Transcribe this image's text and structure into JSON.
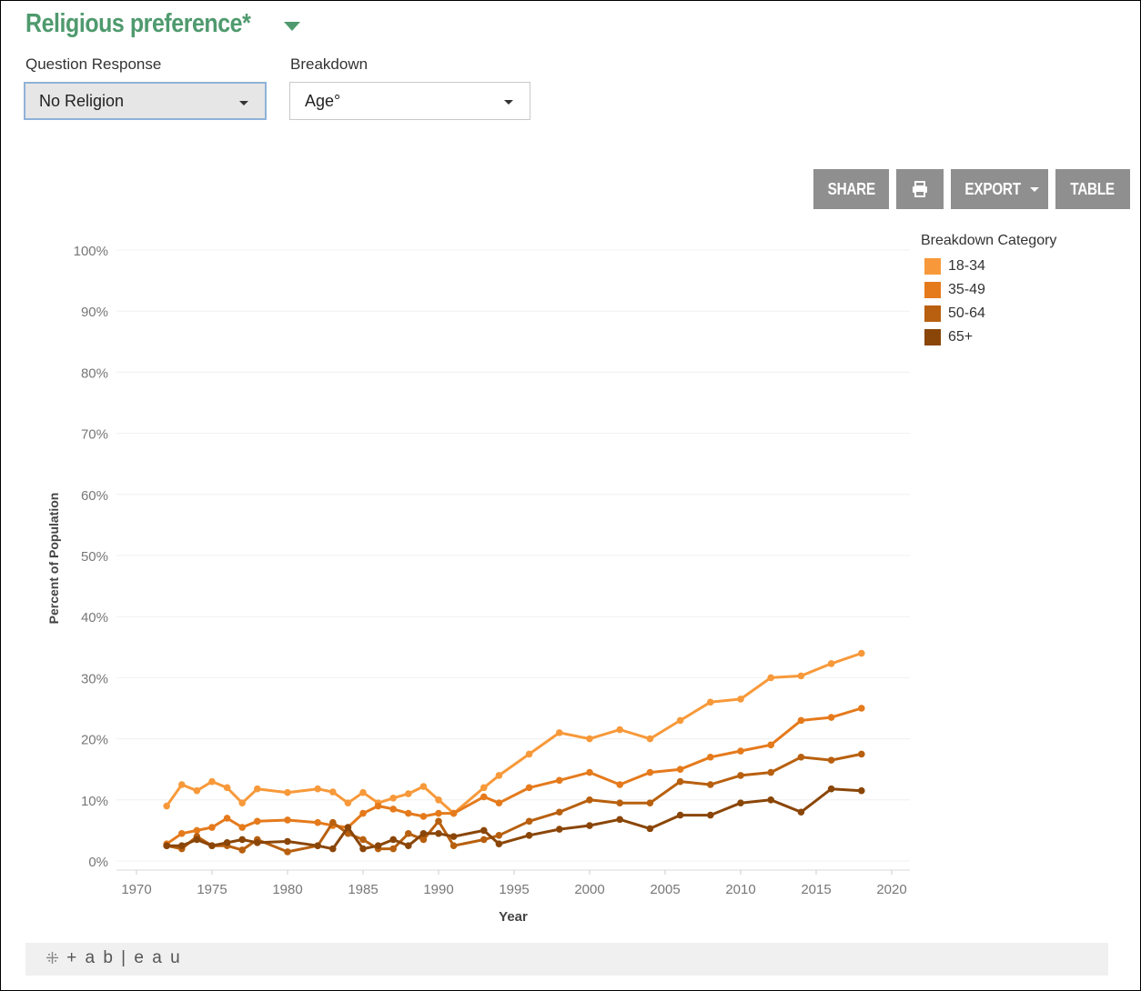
{
  "header": {
    "title": "Religious preference*"
  },
  "controls": {
    "question_label": "Question Response",
    "question_value": "No Religion",
    "breakdown_label": "Breakdown",
    "breakdown_value": "Age°"
  },
  "toolbar": {
    "share": "SHARE",
    "export": "EXPORT",
    "table": "TABLE"
  },
  "legend": {
    "title": "Breakdown Category",
    "items": [
      {
        "label": "18-34",
        "color": "#f7993a"
      },
      {
        "label": "35-49",
        "color": "#e57a1c"
      },
      {
        "label": "50-64",
        "color": "#b8600f"
      },
      {
        "label": "65+",
        "color": "#8a4608"
      }
    ]
  },
  "footer": {
    "logo_text": "+ a b | e a u"
  },
  "chart_data": {
    "type": "line",
    "xlabel": "Year",
    "ylabel": "Percent of Population",
    "xlim": [
      1970,
      2020
    ],
    "ylim": [
      0,
      100
    ],
    "xticks": [
      1970,
      1975,
      1980,
      1985,
      1990,
      1995,
      2000,
      2005,
      2010,
      2015,
      2020
    ],
    "yticks": [
      "0%",
      "10%",
      "20%",
      "30%",
      "40%",
      "50%",
      "60%",
      "70%",
      "80%",
      "90%",
      "100%"
    ],
    "grid": true,
    "legend_position": "right",
    "series": [
      {
        "name": "18-34",
        "color": "#f7993a",
        "points": [
          [
            1972,
            9
          ],
          [
            1973,
            12.5
          ],
          [
            1974,
            11.5
          ],
          [
            1975,
            13
          ],
          [
            1976,
            12
          ],
          [
            1977,
            9.5
          ],
          [
            1978,
            11.8
          ],
          [
            1980,
            11.2
          ],
          [
            1982,
            11.8
          ],
          [
            1983,
            11.3
          ],
          [
            1984,
            9.5
          ],
          [
            1985,
            11.2
          ],
          [
            1986,
            9.5
          ],
          [
            1987,
            10.3
          ],
          [
            1988,
            11
          ],
          [
            1989,
            12.2
          ],
          [
            1990,
            10
          ],
          [
            1991,
            7.8
          ],
          [
            1993,
            12
          ],
          [
            1994,
            14
          ],
          [
            1996,
            17.5
          ],
          [
            1998,
            21
          ],
          [
            2000,
            20
          ],
          [
            2002,
            21.5
          ],
          [
            2004,
            20
          ],
          [
            2006,
            23
          ],
          [
            2008,
            26
          ],
          [
            2010,
            26.5
          ],
          [
            2012,
            30
          ],
          [
            2014,
            30.3
          ],
          [
            2016,
            32.3
          ],
          [
            2018,
            34
          ]
        ]
      },
      {
        "name": "35-49",
        "color": "#e57a1c",
        "points": [
          [
            1972,
            2.8
          ],
          [
            1973,
            4.5
          ],
          [
            1974,
            5
          ],
          [
            1975,
            5.5
          ],
          [
            1976,
            7
          ],
          [
            1977,
            5.5
          ],
          [
            1978,
            6.5
          ],
          [
            1980,
            6.7
          ],
          [
            1982,
            6.3
          ],
          [
            1983,
            5.8
          ],
          [
            1984,
            5.5
          ],
          [
            1985,
            7.8
          ],
          [
            1986,
            9
          ],
          [
            1987,
            8.5
          ],
          [
            1988,
            7.8
          ],
          [
            1989,
            7.3
          ],
          [
            1990,
            7.8
          ],
          [
            1991,
            7.8
          ],
          [
            1993,
            10.5
          ],
          [
            1994,
            9.5
          ],
          [
            1996,
            12
          ],
          [
            1998,
            13.2
          ],
          [
            2000,
            14.5
          ],
          [
            2002,
            12.5
          ],
          [
            2004,
            14.5
          ],
          [
            2006,
            15
          ],
          [
            2008,
            17
          ],
          [
            2010,
            18
          ],
          [
            2012,
            19
          ],
          [
            2014,
            23
          ],
          [
            2016,
            23.5
          ],
          [
            2018,
            25
          ]
        ]
      },
      {
        "name": "50-64",
        "color": "#b8600f",
        "points": [
          [
            1972,
            2.5
          ],
          [
            1973,
            2
          ],
          [
            1974,
            4
          ],
          [
            1975,
            2.5
          ],
          [
            1976,
            2.5
          ],
          [
            1977,
            1.8
          ],
          [
            1978,
            3.5
          ],
          [
            1980,
            1.5
          ],
          [
            1982,
            2.5
          ],
          [
            1983,
            6.3
          ],
          [
            1984,
            4.5
          ],
          [
            1985,
            3.5
          ],
          [
            1986,
            2
          ],
          [
            1987,
            2
          ],
          [
            1988,
            4.5
          ],
          [
            1989,
            3.5
          ],
          [
            1990,
            6.5
          ],
          [
            1991,
            2.5
          ],
          [
            1993,
            3.5
          ],
          [
            1994,
            4.2
          ],
          [
            1996,
            6.5
          ],
          [
            1998,
            8
          ],
          [
            2000,
            10
          ],
          [
            2002,
            9.5
          ],
          [
            2004,
            9.5
          ],
          [
            2006,
            13
          ],
          [
            2008,
            12.5
          ],
          [
            2010,
            14
          ],
          [
            2012,
            14.5
          ],
          [
            2014,
            17
          ],
          [
            2016,
            16.5
          ],
          [
            2018,
            17.5
          ]
        ]
      },
      {
        "name": "65+",
        "color": "#8a4608",
        "points": [
          [
            1972,
            2.5
          ],
          [
            1973,
            2.5
          ],
          [
            1974,
            3.5
          ],
          [
            1975,
            2.5
          ],
          [
            1976,
            3
          ],
          [
            1977,
            3.5
          ],
          [
            1978,
            3
          ],
          [
            1980,
            3.2
          ],
          [
            1982,
            2.5
          ],
          [
            1983,
            2
          ],
          [
            1984,
            5.5
          ],
          [
            1985,
            2
          ],
          [
            1986,
            2.5
          ],
          [
            1987,
            3.5
          ],
          [
            1988,
            2.5
          ],
          [
            1989,
            4.5
          ],
          [
            1990,
            4.5
          ],
          [
            1991,
            4
          ],
          [
            1993,
            5
          ],
          [
            1994,
            2.8
          ],
          [
            1996,
            4.2
          ],
          [
            1998,
            5.2
          ],
          [
            2000,
            5.8
          ],
          [
            2002,
            6.8
          ],
          [
            2004,
            5.3
          ],
          [
            2006,
            7.5
          ],
          [
            2008,
            7.5
          ],
          [
            2010,
            9.5
          ],
          [
            2012,
            10
          ],
          [
            2014,
            8
          ],
          [
            2016,
            11.8
          ],
          [
            2018,
            11.5
          ]
        ]
      }
    ]
  }
}
